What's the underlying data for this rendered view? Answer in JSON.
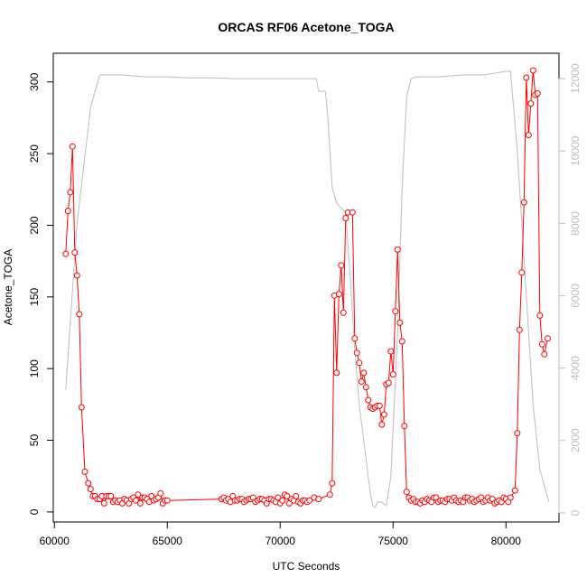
{
  "chart_data": {
    "type": "line",
    "title": "ORCAS RF06 Acetone_TOGA",
    "xlabel": "UTC Seconds",
    "ylabel": "Acetone_TOGA",
    "xlim": [
      59950,
      82350
    ],
    "ylim": [
      -7,
      320
    ],
    "y2lim": [
      -250,
      12700
    ],
    "x_ticks": [
      60000,
      65000,
      70000,
      75000,
      80000
    ],
    "y_ticks": [
      0,
      50,
      100,
      150,
      200,
      250,
      300
    ],
    "y2_ticks": [
      0,
      2000,
      4000,
      6000,
      8000,
      10000,
      12000
    ],
    "grid": false,
    "primary_color": "#ff0000",
    "secondary_color": "#bebebe",
    "series": [
      {
        "points": [
          [
            60500,
            180
          ],
          [
            60600,
            210
          ],
          [
            60700,
            223
          ],
          [
            60800,
            255
          ],
          [
            60900,
            181
          ],
          [
            61000,
            165
          ],
          [
            61100,
            138
          ],
          [
            61200,
            73
          ],
          [
            61350,
            28
          ],
          [
            61500,
            20
          ],
          [
            61600,
            16
          ],
          [
            61700,
            11
          ],
          [
            61800,
            11
          ],
          [
            61900,
            9
          ],
          [
            62000,
            9
          ],
          [
            62100,
            11
          ],
          [
            62200,
            6
          ],
          [
            62300,
            11
          ],
          [
            62400,
            11
          ],
          [
            62500,
            11
          ],
          [
            62600,
            7
          ],
          [
            62700,
            8
          ],
          [
            62800,
            7
          ],
          [
            62900,
            8
          ],
          [
            63000,
            6
          ],
          [
            63100,
            9
          ],
          [
            63200,
            8
          ],
          [
            63300,
            6
          ],
          [
            63400,
            9
          ],
          [
            63500,
            10
          ],
          [
            63600,
            8
          ],
          [
            63700,
            12
          ],
          [
            63800,
            6
          ],
          [
            63900,
            10
          ],
          [
            64000,
            10
          ],
          [
            64100,
            9
          ],
          [
            64200,
            7
          ],
          [
            64300,
            11
          ],
          [
            64400,
            8
          ],
          [
            64500,
            9
          ],
          [
            64600,
            10
          ],
          [
            64700,
            13
          ],
          [
            64800,
            6
          ],
          [
            64900,
            8
          ],
          [
            65000,
            8
          ],
          [
            67400,
            9
          ],
          [
            67500,
            10
          ],
          [
            67600,
            8
          ],
          [
            67700,
            9
          ],
          [
            67800,
            7
          ],
          [
            67900,
            11
          ],
          [
            68000,
            8
          ],
          [
            68100,
            8
          ],
          [
            68200,
            9
          ],
          [
            68300,
            9
          ],
          [
            68400,
            7
          ],
          [
            68500,
            8
          ],
          [
            68600,
            9
          ],
          [
            68700,
            9
          ],
          [
            68800,
            10
          ],
          [
            68900,
            7
          ],
          [
            69000,
            8
          ],
          [
            69100,
            9
          ],
          [
            69200,
            9
          ],
          [
            69300,
            8
          ],
          [
            69400,
            6
          ],
          [
            69500,
            9
          ],
          [
            69600,
            9
          ],
          [
            69700,
            8
          ],
          [
            69800,
            7
          ],
          [
            69900,
            10
          ],
          [
            70000,
            6
          ],
          [
            70100,
            8
          ],
          [
            70200,
            12
          ],
          [
            70300,
            11
          ],
          [
            70400,
            6
          ],
          [
            70500,
            9
          ],
          [
            70600,
            8
          ],
          [
            70700,
            11
          ],
          [
            70800,
            7
          ],
          [
            70900,
            6
          ],
          [
            71000,
            8
          ],
          [
            71100,
            8
          ],
          [
            71200,
            7
          ],
          [
            71300,
            8
          ],
          [
            71500,
            10
          ],
          [
            71700,
            9
          ],
          [
            72200,
            12
          ],
          [
            72300,
            20
          ],
          [
            72400,
            151
          ],
          [
            72500,
            97
          ],
          [
            72600,
            152
          ],
          [
            72700,
            172
          ],
          [
            72800,
            139
          ],
          [
            72900,
            205
          ],
          [
            73000,
            209
          ],
          [
            73200,
            209
          ],
          [
            73300,
            121
          ],
          [
            73400,
            111
          ],
          [
            73500,
            104
          ],
          [
            73600,
            91
          ],
          [
            73700,
            97
          ],
          [
            73800,
            87
          ],
          [
            73900,
            78
          ],
          [
            74000,
            73
          ],
          [
            74100,
            72
          ],
          [
            74200,
            73
          ],
          [
            74300,
            74
          ],
          [
            74400,
            74
          ],
          [
            74500,
            61
          ],
          [
            74600,
            68
          ],
          [
            74700,
            89
          ],
          [
            74800,
            90
          ],
          [
            74900,
            112
          ],
          [
            75000,
            96
          ],
          [
            75100,
            140
          ],
          [
            75200,
            183
          ],
          [
            75300,
            132
          ],
          [
            75400,
            119
          ],
          [
            75500,
            60
          ],
          [
            75600,
            14
          ],
          [
            75700,
            10
          ],
          [
            75800,
            8
          ],
          [
            75900,
            9
          ],
          [
            76000,
            7
          ],
          [
            76100,
            7
          ],
          [
            76200,
            6
          ],
          [
            76300,
            8
          ],
          [
            76400,
            7
          ],
          [
            76500,
            9
          ],
          [
            76600,
            8
          ],
          [
            76700,
            7
          ],
          [
            76800,
            10
          ],
          [
            76900,
            10
          ],
          [
            77000,
            7
          ],
          [
            77100,
            8
          ],
          [
            77200,
            8
          ],
          [
            77300,
            7
          ],
          [
            77400,
            9
          ],
          [
            77500,
            9
          ],
          [
            77600,
            8
          ],
          [
            77700,
            10
          ],
          [
            77800,
            8
          ],
          [
            77900,
            7
          ],
          [
            78000,
            8
          ],
          [
            78100,
            7
          ],
          [
            78200,
            10
          ],
          [
            78300,
            10
          ],
          [
            78400,
            8
          ],
          [
            78500,
            9
          ],
          [
            78600,
            7
          ],
          [
            78700,
            8
          ],
          [
            78800,
            9
          ],
          [
            78900,
            10
          ],
          [
            79000,
            7
          ],
          [
            79100,
            8
          ],
          [
            79200,
            10
          ],
          [
            79300,
            8
          ],
          [
            79400,
            9
          ],
          [
            79500,
            6
          ],
          [
            79600,
            7
          ],
          [
            79700,
            8
          ],
          [
            79800,
            7
          ],
          [
            79900,
            10
          ],
          [
            80000,
            9
          ],
          [
            80100,
            7
          ],
          [
            80200,
            10
          ],
          [
            80400,
            15
          ],
          [
            80500,
            55
          ],
          [
            80600,
            127
          ],
          [
            80700,
            167
          ],
          [
            80800,
            216
          ],
          [
            80900,
            303
          ],
          [
            81000,
            263
          ],
          [
            81100,
            285
          ],
          [
            81200,
            308
          ],
          [
            81300,
            291
          ],
          [
            81400,
            292
          ],
          [
            81500,
            137
          ],
          [
            81600,
            117
          ],
          [
            81700,
            110
          ],
          [
            81850,
            121
          ]
        ]
      },
      {
        "axis": "right",
        "points": [
          [
            60500,
            3400
          ],
          [
            61000,
            8000
          ],
          [
            61600,
            11200
          ],
          [
            62000,
            12100
          ],
          [
            63000,
            12100
          ],
          [
            64000,
            12050
          ],
          [
            65000,
            12050
          ],
          [
            66000,
            12020
          ],
          [
            67000,
            12020
          ],
          [
            68000,
            12000
          ],
          [
            69000,
            12000
          ],
          [
            70000,
            12000
          ],
          [
            71000,
            12000
          ],
          [
            71600,
            12000
          ],
          [
            71700,
            11650
          ],
          [
            72000,
            11650
          ],
          [
            72100,
            11000
          ],
          [
            72300,
            9000
          ],
          [
            72500,
            8550
          ],
          [
            72900,
            8300
          ],
          [
            73100,
            6500
          ],
          [
            73300,
            4500
          ],
          [
            73500,
            3000
          ],
          [
            73800,
            1500
          ],
          [
            74000,
            500
          ],
          [
            74100,
            200
          ],
          [
            74200,
            150
          ],
          [
            74300,
            300
          ],
          [
            74500,
            300
          ],
          [
            74700,
            200
          ],
          [
            74900,
            1000
          ],
          [
            75200,
            5000
          ],
          [
            75400,
            9000
          ],
          [
            75600,
            11500
          ],
          [
            75800,
            12000
          ],
          [
            76000,
            12050
          ],
          [
            77000,
            12050
          ],
          [
            78000,
            12100
          ],
          [
            79000,
            12100
          ],
          [
            80000,
            12200
          ],
          [
            80200,
            12200
          ],
          [
            80500,
            10000
          ],
          [
            80800,
            7000
          ],
          [
            81200,
            3000
          ],
          [
            81500,
            1200
          ],
          [
            81900,
            300
          ]
        ]
      }
    ]
  }
}
